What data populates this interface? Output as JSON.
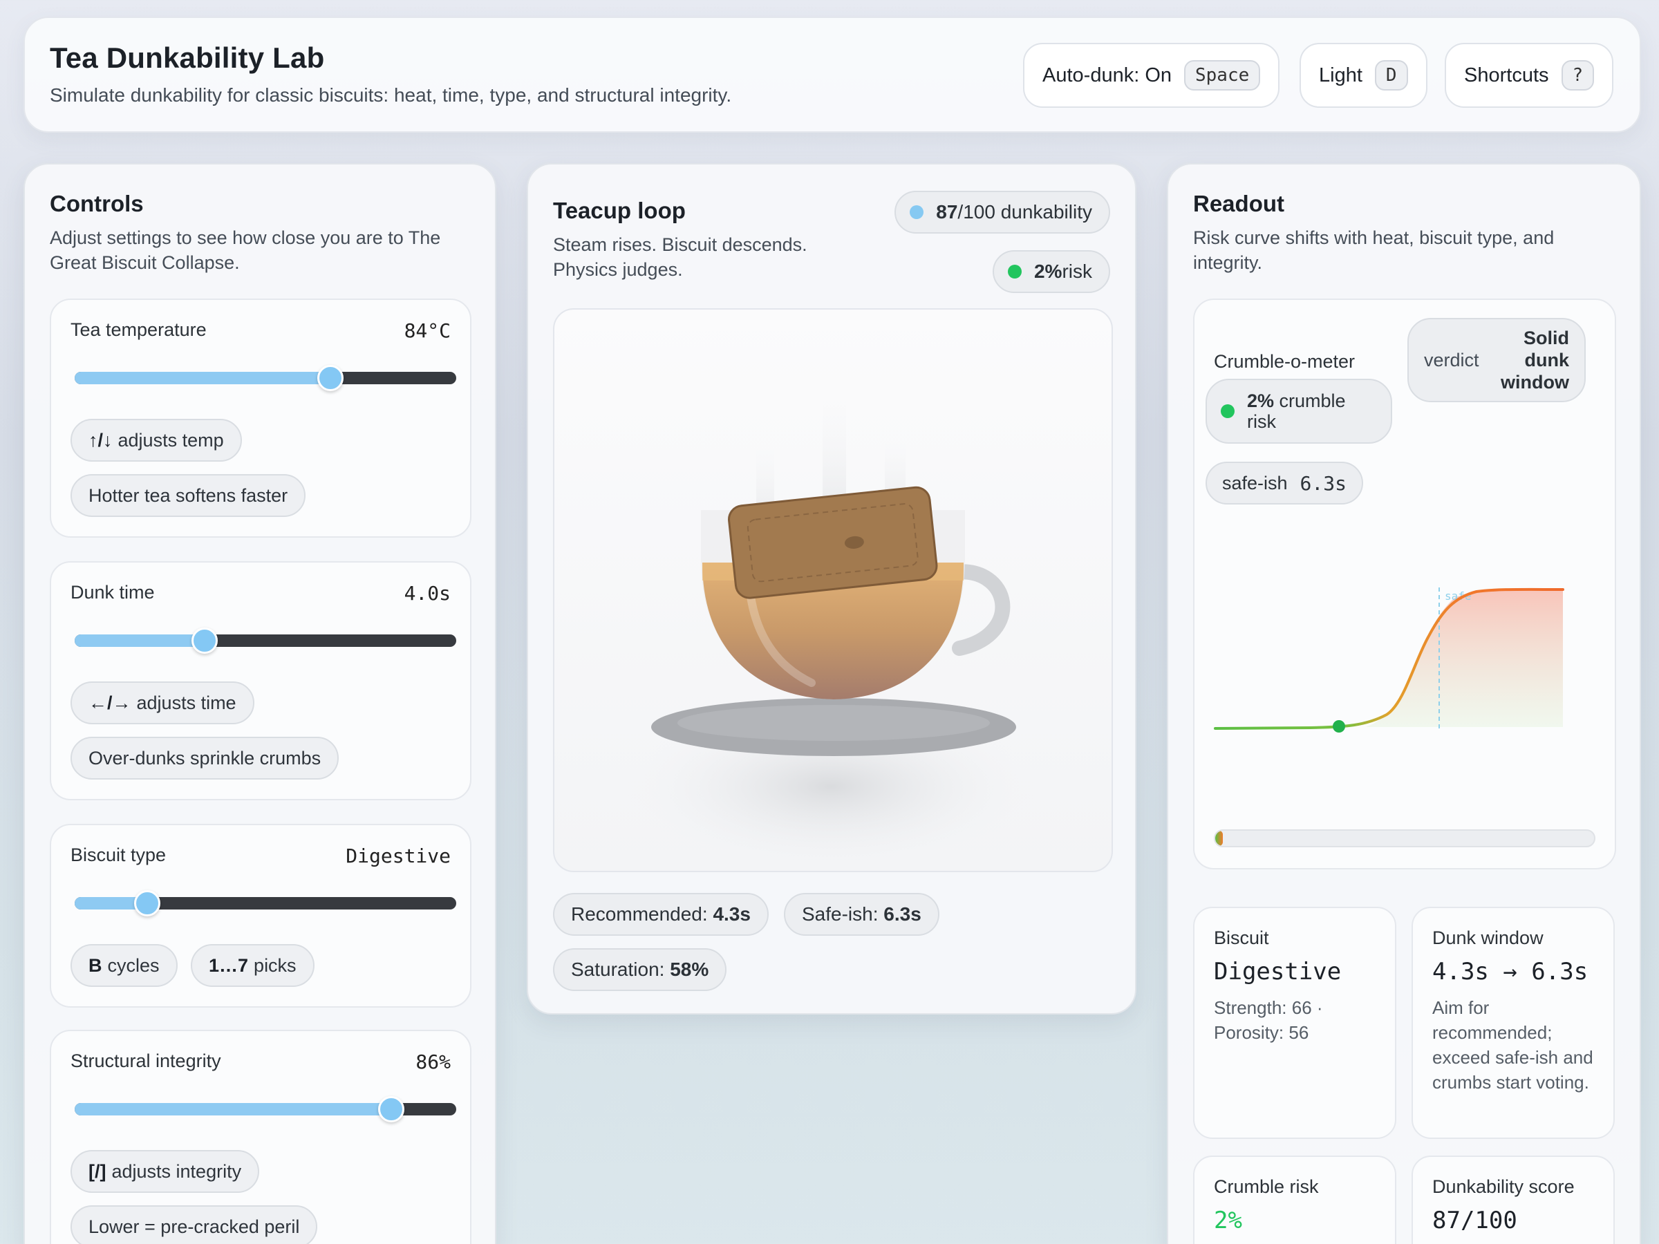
{
  "header": {
    "title": "Tea Dunkability Lab",
    "subtitle": "Simulate dunkability for classic biscuits: heat, time, type, and structural integrity.",
    "buttons": [
      {
        "label": "Auto-dunk: On",
        "key": "Space"
      },
      {
        "label": "Light",
        "key": "D"
      },
      {
        "label": "Shortcuts",
        "key": "?"
      }
    ]
  },
  "controls": {
    "title": "Controls",
    "description": "Adjust settings to see how close you are to The Great Biscuit Collapse.",
    "temperature": {
      "label": "Tea temperature",
      "value": "84°C",
      "level": 0.67,
      "hint_key": "↑/↓",
      "hint_text": "adjusts temp",
      "note": "Hotter tea softens faster"
    },
    "dunk_time": {
      "label": "Dunk time",
      "value": "4.0s",
      "level": 0.34,
      "hint_key": "←/→",
      "hint_text": "adjusts time",
      "note": "Over-dunks sprinkle crumbs"
    },
    "biscuit_type": {
      "label": "Biscuit type",
      "value": "Digestive",
      "level": 0.19,
      "hint1_key": "B",
      "hint1_text": "cycles",
      "hint2_key": "1…7",
      "hint2_text": "picks"
    },
    "integrity": {
      "label": "Structural integrity",
      "value": "86%",
      "level": 0.83,
      "hint_key": "[/]",
      "hint_text": "adjusts integrity",
      "note": "Lower = pre-cracked peril"
    }
  },
  "teacup": {
    "title": "Teacup loop",
    "description": "Steam rises. Biscuit descends. Physics judges.",
    "score_value": "87",
    "score_suffix": "/100 dunkability",
    "risk_value": "2%",
    "risk_suffix": " risk",
    "recommended_label": "Recommended:",
    "recommended_value": "4.3s",
    "safe_label": "Safe-ish:",
    "safe_value": "6.3s",
    "saturation_label": "Saturation:",
    "saturation_value": "58%"
  },
  "readout": {
    "title": "Readout",
    "description": "Risk curve shifts with heat, biscuit type, and integrity.",
    "meter_label": "Crumble-o-meter",
    "verdict_label": "verdict",
    "verdict_value": "Solid dunk window",
    "crumble_value": "2%",
    "crumble_suffix": "crumble risk",
    "safe_label": "safe-ish",
    "safe_value": "6.3s",
    "curve_marker_label": "safe",
    "meter_level": 0.02,
    "cards": {
      "biscuit": {
        "label": "Biscuit",
        "value": "Digestive",
        "detail": "Strength: 66 · Porosity: 56"
      },
      "window": {
        "label": "Dunk window",
        "value": "4.3s → 6.3s",
        "detail": "Aim for recommended; exceed safe-ish and crumbs start voting."
      },
      "crumble": {
        "label": "Crumble risk",
        "value": "2%"
      },
      "score": {
        "label": "Dunkability score",
        "value": "87/100"
      }
    }
  },
  "colors": {
    "accent": "#8ecaf2",
    "safe_green": "#22c55e",
    "risk_orange": "#f07a2c",
    "tea": "#c99a6a",
    "biscuit": "#a27a4f"
  }
}
